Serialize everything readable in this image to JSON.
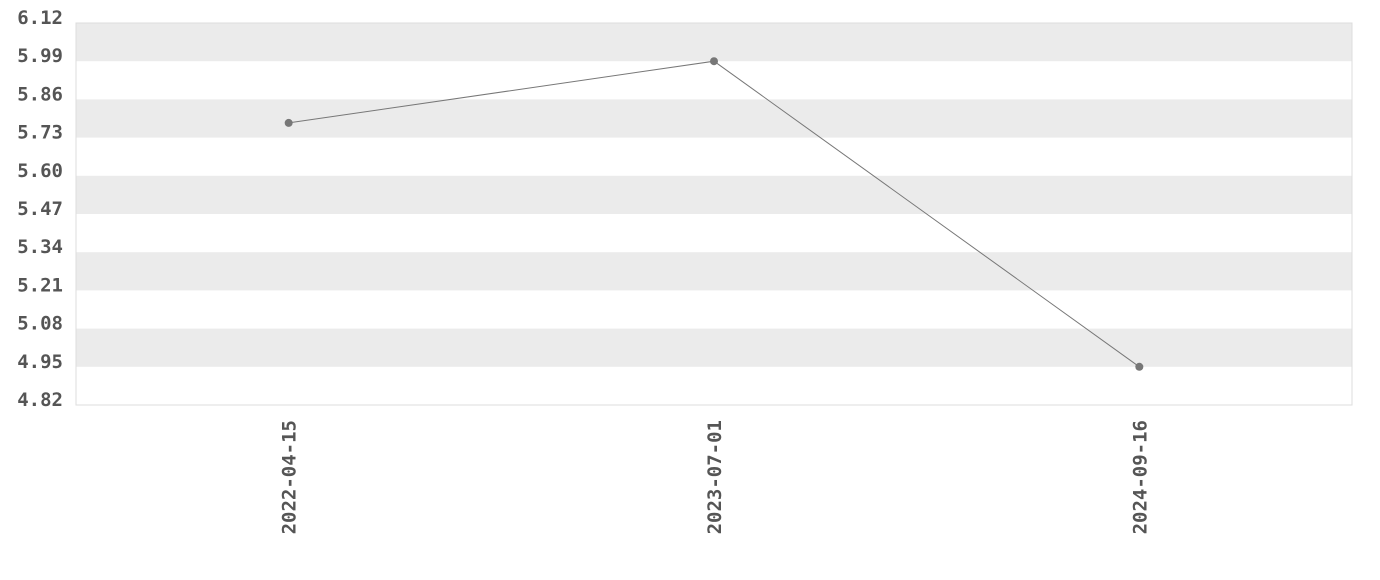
{
  "chart_data": {
    "type": "line",
    "title": "",
    "xlabel": "",
    "ylabel": "",
    "categories": [
      "2022-04-15",
      "2023-07-01",
      "2024-09-16"
    ],
    "values": [
      5.78,
      5.99,
      4.95
    ],
    "ylim": [
      4.82,
      6.12
    ],
    "yticks": [
      "6.12",
      "5.99",
      "5.86",
      "5.73",
      "5.60",
      "5.47",
      "5.34",
      "5.21",
      "5.08",
      "4.95",
      "4.82"
    ],
    "grid": "alternating horizontal bands",
    "colors": {
      "line": "#777777",
      "marker": "#777777",
      "band": "#ebebeb",
      "text": "#555555",
      "border": "#dddddd"
    }
  }
}
